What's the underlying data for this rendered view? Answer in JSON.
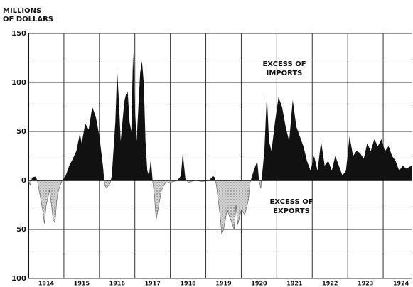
{
  "chart_data": {
    "type": "area",
    "ylabel": [
      "MILLIONS",
      "OF DOLLARS"
    ],
    "annotations": [
      {
        "lines": [
          "EXCESS OF",
          "IMPORTS"
        ]
      },
      {
        "lines": [
          "EXCESS OF",
          "EXPORTS"
        ]
      }
    ],
    "xlim": [
      1914,
      1924.82
    ],
    "xticks": [
      1914,
      1915,
      1916,
      1917,
      1918,
      1919,
      1920,
      1921,
      1922,
      1923,
      1924
    ],
    "xtick_labels": [
      "1914",
      "1915",
      "1916",
      "1917",
      "1918",
      "1919",
      "1920",
      "1921",
      "1922",
      "1923",
      "1924"
    ],
    "ylim": [
      -100,
      150
    ],
    "yticks": [
      150,
      100,
      50,
      0,
      {
        "value": -50,
        "label": "50"
      },
      {
        "value": -100,
        "label": "100"
      }
    ],
    "minor_yticks": [
      125,
      75,
      25,
      -25,
      -75
    ],
    "grid": true,
    "series": [
      {
        "positive_color": "#111111",
        "negative_color": "#c8c8c8",
        "x": [
          1914.0,
          1914.05,
          1914.1,
          1914.2,
          1914.25,
          1914.3,
          1914.4,
          1914.45,
          1914.5,
          1914.6,
          1914.7,
          1914.75,
          1914.8,
          1914.85,
          1914.95,
          1915.05,
          1915.15,
          1915.25,
          1915.35,
          1915.45,
          1915.5,
          1915.6,
          1915.7,
          1915.8,
          1915.9,
          1916.0,
          1916.1,
          1916.15,
          1916.2,
          1916.3,
          1916.35,
          1916.45,
          1916.5,
          1916.55,
          1916.6,
          1916.7,
          1916.75,
          1916.8,
          1916.85,
          1916.9,
          1916.95,
          1917.0,
          1917.05,
          1917.15,
          1917.2,
          1917.25,
          1917.3,
          1917.35,
          1917.4,
          1917.45,
          1917.5,
          1917.55,
          1917.6,
          1917.65,
          1917.75,
          1917.85,
          1918.0,
          1918.2,
          1918.3,
          1918.35,
          1918.42,
          1918.5,
          1918.7,
          1918.9,
          1919.1,
          1919.2,
          1919.25,
          1919.3,
          1919.4,
          1919.45,
          1919.5,
          1919.6,
          1919.7,
          1919.8,
          1919.85,
          1919.9,
          1920.0,
          1920.1,
          1920.2,
          1920.25,
          1920.35,
          1920.45,
          1920.5,
          1920.55,
          1920.65,
          1920.72,
          1920.78,
          1920.85,
          1920.95,
          1921.05,
          1921.15,
          1921.25,
          1921.35,
          1921.45,
          1921.55,
          1921.65,
          1921.75,
          1921.85,
          1921.95,
          1922.05,
          1922.15,
          1922.25,
          1922.35,
          1922.45,
          1922.55,
          1922.65,
          1922.75,
          1922.85,
          1922.95,
          1923.05,
          1923.15,
          1923.25,
          1923.35,
          1923.45,
          1923.55,
          1923.65,
          1923.75,
          1923.85,
          1923.95,
          1924.05,
          1924.15,
          1924.25,
          1924.35,
          1924.45,
          1924.55,
          1924.65,
          1924.8
        ],
        "values": [
          0,
          -5,
          3,
          4,
          0,
          -10,
          -30,
          -44,
          -25,
          -10,
          -40,
          -43,
          -20,
          -10,
          0,
          5,
          15,
          22,
          30,
          48,
          38,
          58,
          52,
          75,
          65,
          45,
          15,
          -5,
          -8,
          -3,
          5,
          60,
          113,
          80,
          40,
          80,
          88,
          90,
          60,
          50,
          130,
          75,
          40,
          110,
          122,
          100,
          40,
          10,
          5,
          22,
          0,
          -15,
          -40,
          -30,
          -10,
          -3,
          -2,
          0,
          5,
          28,
          3,
          -2,
          0,
          -1,
          0,
          5,
          3,
          -5,
          -35,
          -55,
          -50,
          -30,
          -40,
          -50,
          -25,
          -45,
          -30,
          -35,
          -20,
          -2,
          10,
          20,
          0,
          -8,
          30,
          88,
          40,
          30,
          60,
          85,
          75,
          55,
          40,
          82,
          55,
          45,
          35,
          20,
          10,
          25,
          10,
          40,
          15,
          20,
          10,
          25,
          15,
          5,
          10,
          45,
          25,
          30,
          28,
          22,
          38,
          30,
          42,
          35,
          42,
          30,
          35,
          25,
          20,
          10,
          15,
          12,
          15
        ]
      }
    ]
  }
}
